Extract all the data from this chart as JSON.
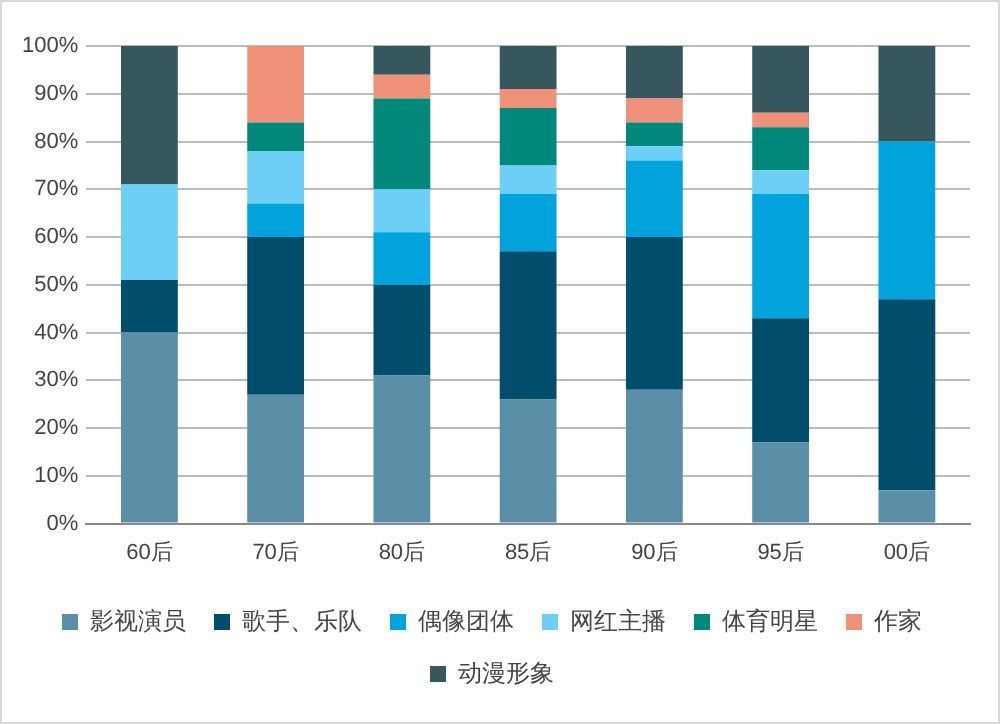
{
  "chart_data": {
    "type": "bar",
    "stacked": true,
    "categories": [
      "60后",
      "70后",
      "80后",
      "85后",
      "90后",
      "95后",
      "00后"
    ],
    "series": [
      {
        "name": "影视演员",
        "color": "#5b8fa8",
        "values": [
          40,
          27,
          31,
          26,
          28,
          17,
          7
        ]
      },
      {
        "name": "歌手、乐队",
        "color": "#004e6b",
        "values": [
          11,
          33,
          19,
          31,
          32,
          26,
          40
        ]
      },
      {
        "name": "偶像团体",
        "color": "#00a3dc",
        "values": [
          0,
          7,
          11,
          12,
          16,
          26,
          33
        ]
      },
      {
        "name": "网红主播",
        "color": "#6dcff6",
        "values": [
          20,
          11,
          9,
          6,
          3,
          5,
          0
        ]
      },
      {
        "name": "体育明星",
        "color": "#00897b",
        "values": [
          0,
          6,
          19,
          12,
          5,
          9,
          0
        ]
      },
      {
        "name": "作家",
        "color": "#ef9178",
        "values": [
          0,
          16,
          5,
          4,
          5,
          3,
          0
        ]
      },
      {
        "name": "动漫形象",
        "color": "#37575f",
        "values": [
          29,
          0,
          6,
          9,
          11,
          14,
          20
        ]
      }
    ],
    "ylim": [
      0,
      100
    ],
    "yticks": [
      {
        "value": 0,
        "label": "0%"
      },
      {
        "value": 10,
        "label": "10%"
      },
      {
        "value": 20,
        "label": "20%"
      },
      {
        "value": 30,
        "label": "30%"
      },
      {
        "value": 40,
        "label": "40%"
      },
      {
        "value": 50,
        "label": "50%"
      },
      {
        "value": 60,
        "label": "60%"
      },
      {
        "value": 70,
        "label": "70%"
      },
      {
        "value": 80,
        "label": "80%"
      },
      {
        "value": 90,
        "label": "90%"
      },
      {
        "value": 100,
        "label": "100%"
      }
    ],
    "grid": "y",
    "legend": "bottom"
  }
}
